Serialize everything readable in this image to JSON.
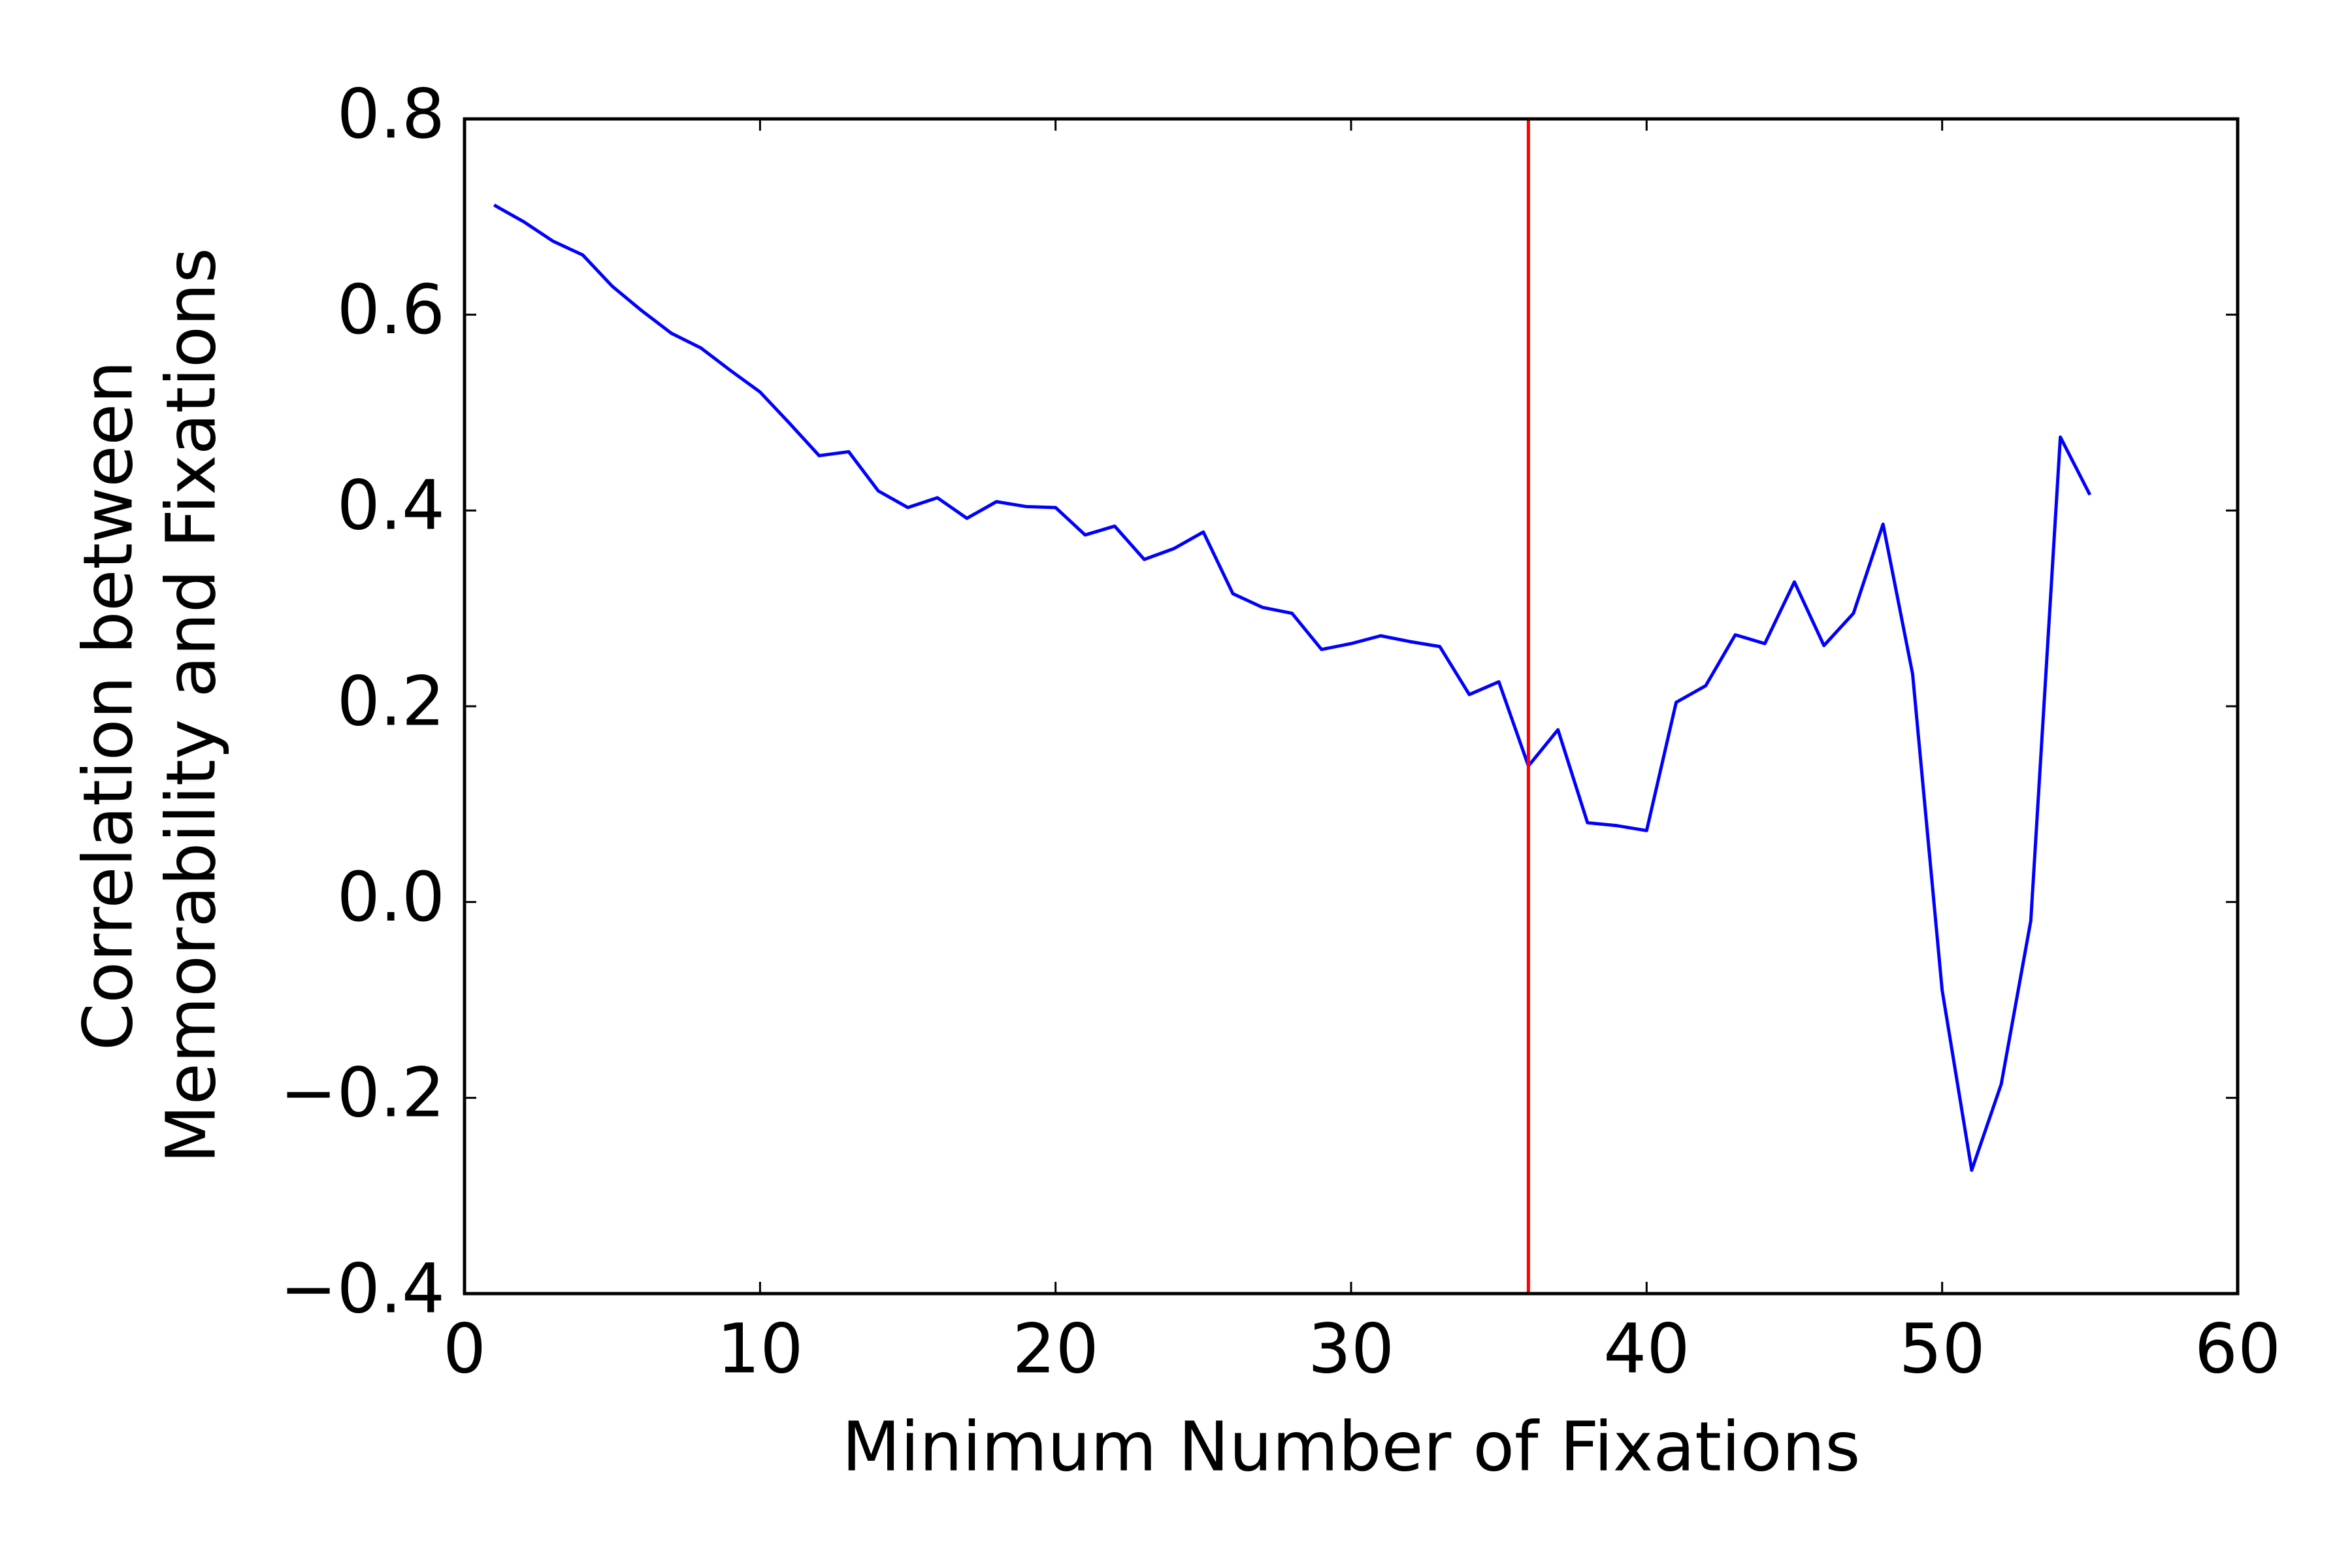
{
  "chart_data": {
    "type": "line",
    "xlabel": "Minimum Number of Fixations",
    "ylabel": [
      "Correlation between",
      "Memorability and Fixations"
    ],
    "x": [
      1,
      2,
      3,
      4,
      5,
      6,
      7,
      8,
      9,
      10,
      11,
      12,
      13,
      14,
      15,
      16,
      17,
      18,
      19,
      20,
      21,
      22,
      23,
      24,
      25,
      26,
      27,
      28,
      29,
      30,
      31,
      32,
      33,
      34,
      35,
      36,
      37,
      38,
      39,
      40,
      41,
      42,
      43,
      44,
      45,
      46,
      47,
      48,
      49,
      50,
      51,
      52,
      53,
      54,
      55
    ],
    "series": [
      {
        "color": "#0000ff",
        "values": [
          0.712,
          0.695,
          0.675,
          0.661,
          0.629,
          0.604,
          0.581,
          0.566,
          0.543,
          0.521,
          0.489,
          0.456,
          0.46,
          0.42,
          0.403,
          0.413,
          0.392,
          0.409,
          0.404,
          0.403,
          0.375,
          0.384,
          0.35,
          0.361,
          0.378,
          0.315,
          0.301,
          0.295,
          0.258,
          0.264,
          0.272,
          0.266,
          0.261,
          0.212,
          0.225,
          0.139,
          0.176,
          0.081,
          0.078,
          0.073,
          0.204,
          0.221,
          0.273,
          0.264,
          0.327,
          0.262,
          0.295,
          0.386,
          0.233,
          -0.09,
          -0.274,
          -0.186,
          -0.019,
          0.475,
          0.416
        ]
      }
    ],
    "vline": {
      "x": 36,
      "color": "#ff0000"
    },
    "xlim": [
      0,
      60
    ],
    "xticks": [
      0,
      10,
      20,
      30,
      40,
      50,
      60
    ],
    "ylim": [
      -0.4,
      0.8
    ],
    "yticks": [
      {
        "value": -0.4,
        "label": "−0.4"
      },
      {
        "value": -0.2,
        "label": "−0.2"
      },
      {
        "value": 0,
        "label": "0.0"
      },
      0.2,
      0.4,
      0.6,
      0.8
    ]
  }
}
